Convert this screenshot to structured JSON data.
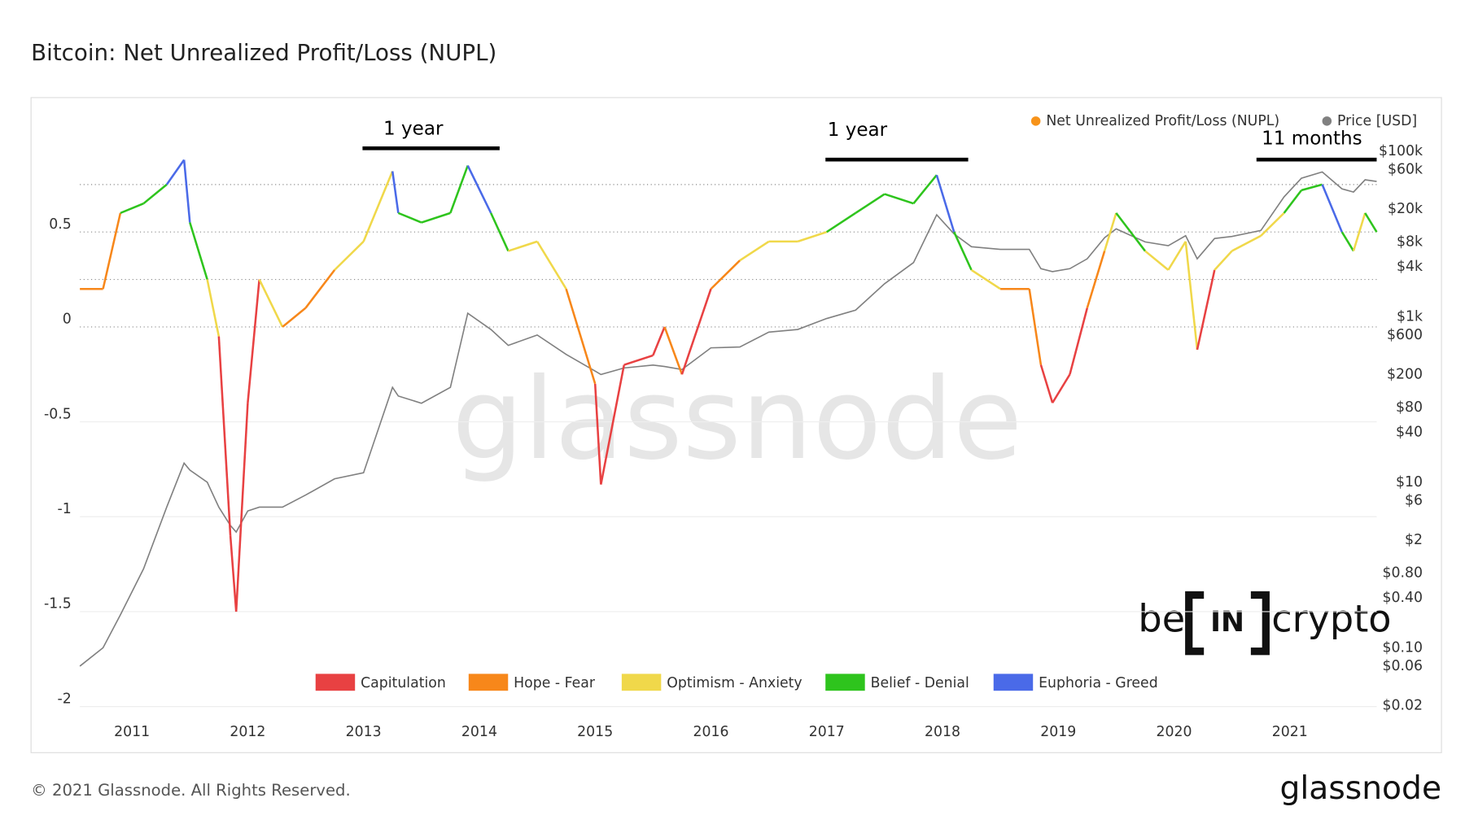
{
  "chart_data": {
    "type": "line",
    "title": "Bitcoin: Net Unrealized Profit/Loss (NUPL)",
    "annotations": [
      "1 year",
      "1 year",
      "11 months"
    ],
    "x": [
      2010.55,
      2010.75,
      2010.9,
      2011.1,
      2011.3,
      2011.45,
      2011.5,
      2011.65,
      2011.75,
      2011.85,
      2011.9,
      2012.0,
      2012.1,
      2012.3,
      2012.5,
      2012.75,
      2013.0,
      2013.25,
      2013.3,
      2013.5,
      2013.75,
      2013.9,
      2014.1,
      2014.25,
      2014.5,
      2014.75,
      2015.0,
      2015.05,
      2015.25,
      2015.5,
      2015.6,
      2015.75,
      2016.0,
      2016.25,
      2016.5,
      2016.75,
      2017.0,
      2017.25,
      2017.5,
      2017.75,
      2017.95,
      2018.1,
      2018.25,
      2018.5,
      2018.75,
      2018.85,
      2018.95,
      2019.1,
      2019.25,
      2019.4,
      2019.5,
      2019.75,
      2019.95,
      2020.1,
      2020.2,
      2020.35,
      2020.5,
      2020.75,
      2020.95,
      2021.1,
      2021.28,
      2021.45,
      2021.55,
      2021.65,
      2021.75
    ],
    "series": [
      {
        "name": "Net Unrealized Profit/Loss (NUPL)",
        "color": "#f7931a",
        "values": [
          0.2,
          0.2,
          0.6,
          0.65,
          0.75,
          0.88,
          0.55,
          0.25,
          -0.05,
          -1.1,
          -1.5,
          -0.4,
          0.25,
          0.0,
          0.1,
          0.3,
          0.45,
          0.82,
          0.6,
          0.55,
          0.6,
          0.85,
          0.6,
          0.4,
          0.45,
          0.2,
          -0.3,
          -0.83,
          -0.2,
          -0.15,
          0.0,
          -0.25,
          0.2,
          0.35,
          0.45,
          0.45,
          0.5,
          0.6,
          0.7,
          0.65,
          0.8,
          0.5,
          0.3,
          0.2,
          0.2,
          -0.2,
          -0.4,
          -0.25,
          0.1,
          0.4,
          0.6,
          0.4,
          0.3,
          0.45,
          -0.12,
          0.3,
          0.4,
          0.48,
          0.6,
          0.72,
          0.75,
          0.5,
          0.4,
          0.6,
          0.5
        ]
      },
      {
        "name": "Price [USD]",
        "color": "#808080",
        "axis": "y2",
        "values": [
          0.06,
          0.1,
          0.25,
          0.9,
          5,
          17,
          14,
          10,
          5,
          3,
          2.5,
          4.5,
          5,
          5,
          7,
          11,
          13,
          140,
          110,
          90,
          140,
          1100,
          700,
          450,
          600,
          350,
          220,
          200,
          240,
          260,
          250,
          230,
          420,
          430,
          650,
          700,
          950,
          1200,
          2500,
          4500,
          17000,
          10000,
          7000,
          6500,
          6500,
          3800,
          3500,
          3800,
          5000,
          9000,
          11500,
          8000,
          7200,
          9500,
          5000,
          8800,
          9300,
          11000,
          28000,
          47000,
          56000,
          35000,
          32000,
          45000,
          43000
        ]
      }
    ],
    "zones": [
      {
        "name": "Capitulation",
        "color": "#e84142"
      },
      {
        "name": "Hope - Fear",
        "color": "#f7871a"
      },
      {
        "name": "Optimism - Anxiety",
        "color": "#f0d84a"
      },
      {
        "name": "Belief - Denial",
        "color": "#2ec41d"
      },
      {
        "name": "Euphoria - Greed",
        "color": "#4a6ae8"
      }
    ],
    "thresholds": [
      0,
      0.25,
      0.5,
      0.75
    ],
    "xlim": [
      2010.55,
      2021.75
    ],
    "xticks": [
      2011,
      2012,
      2013,
      2014,
      2015,
      2016,
      2017,
      2018,
      2019,
      2020,
      2021
    ],
    "ylim": [
      -2.06,
      1.03
    ],
    "yticks": [
      -2,
      -1.5,
      -1,
      -0.5,
      0,
      0.5
    ],
    "y2lim": [
      0.0142,
      173000
    ],
    "y2log": true,
    "y2ticks": [
      {
        "value": 100000,
        "label": "$100k"
      },
      {
        "value": 60000,
        "label": "$60k"
      },
      {
        "value": 20000,
        "label": "$20k"
      },
      {
        "value": 8000,
        "label": "$8k"
      },
      {
        "value": 4000,
        "label": "$4k"
      },
      {
        "value": 1000,
        "label": "$1k"
      },
      {
        "value": 600,
        "label": "$600"
      },
      {
        "value": 200,
        "label": "$200"
      },
      {
        "value": 80,
        "label": "$80"
      },
      {
        "value": 40,
        "label": "$40"
      },
      {
        "value": 10,
        "label": "$10"
      },
      {
        "value": 6,
        "label": "$6"
      },
      {
        "value": 2,
        "label": "$2"
      },
      {
        "value": 0.8,
        "label": "$0.80"
      },
      {
        "value": 0.4,
        "label": "$0.40"
      },
      {
        "value": 0.1,
        "label": "$0.10"
      },
      {
        "value": 0.06,
        "label": "$0.06"
      },
      {
        "value": 0.02,
        "label": "$0.02"
      }
    ],
    "grid": true
  },
  "watermark": "glassnode",
  "logo": {
    "left": "be",
    "middle": "IN",
    "right": "crypto"
  },
  "footer": {
    "copyright": "© 2021 Glassnode. All Rights Reserved.",
    "brand": "glassnode"
  }
}
